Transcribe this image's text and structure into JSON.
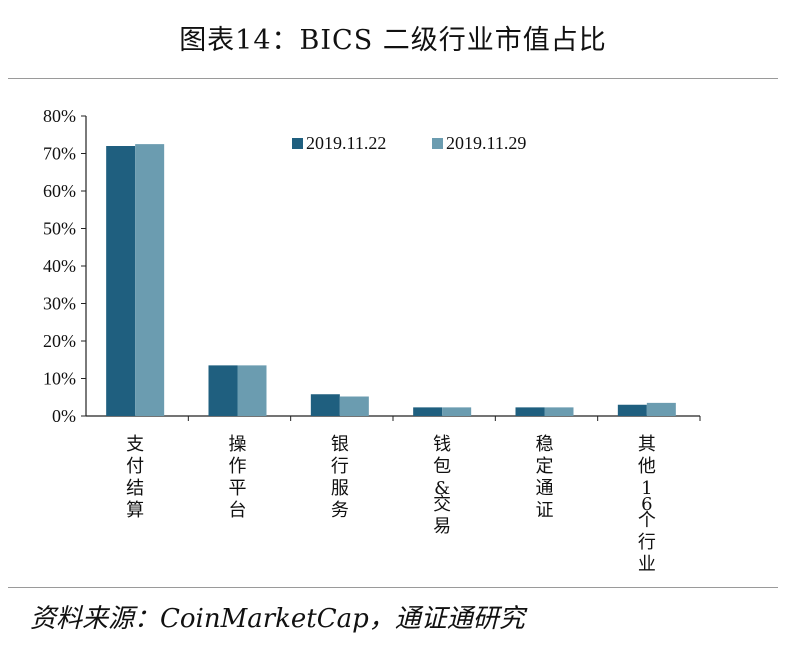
{
  "title": "图表14：BICS 二级行业市值占比",
  "source": "资料来源：CoinMarketCap，通证通研究",
  "chart_data": {
    "type": "bar",
    "title": "图表14：BICS 二级行业市值占比",
    "xlabel": "",
    "ylabel": "",
    "ylim": [
      0,
      80
    ],
    "yticks": [
      "0%",
      "10%",
      "20%",
      "30%",
      "40%",
      "50%",
      "60%",
      "70%",
      "80%"
    ],
    "categories": [
      "支付结算",
      "操作平台",
      "银行服务",
      "钱包&交易",
      "稳定通证",
      "其他16个行业"
    ],
    "series": [
      {
        "name": "2019.11.22",
        "color": "#1f5f7f",
        "values": [
          72.0,
          13.5,
          5.8,
          2.3,
          2.3,
          3.0
        ]
      },
      {
        "name": "2019.11.29",
        "color": "#6b9cb0",
        "values": [
          72.5,
          13.5,
          5.2,
          2.3,
          2.3,
          3.5
        ]
      }
    ],
    "legend": "top-right",
    "grid": false
  }
}
